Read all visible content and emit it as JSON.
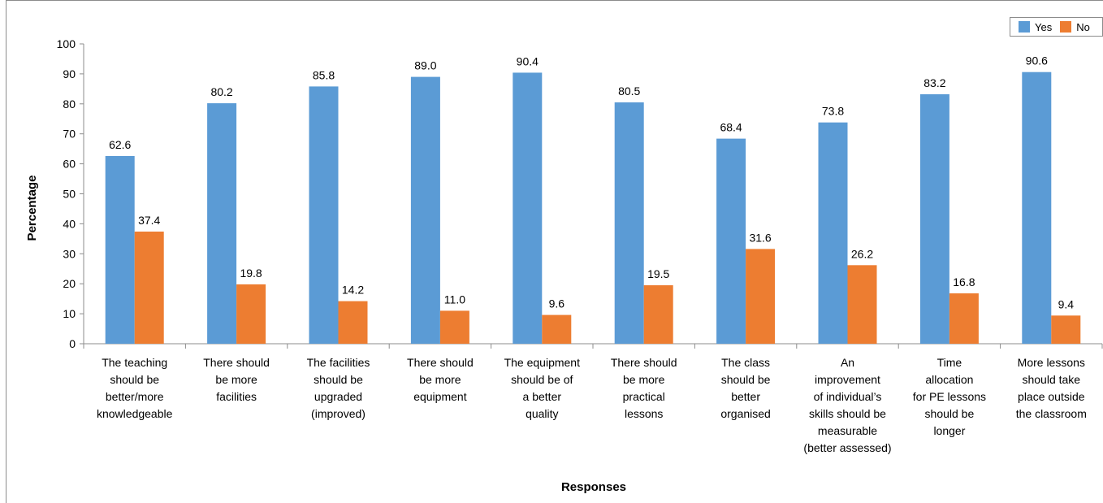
{
  "chart_data": {
    "type": "bar",
    "xlabel": "Responses",
    "ylabel": "Percentage",
    "ylim": [
      0,
      100
    ],
    "yticks": [
      "0",
      "10",
      "20",
      "30",
      "40",
      "50",
      "60",
      "70",
      "80",
      "90",
      "100"
    ],
    "grid": false,
    "legend_position": "top-right",
    "categories": [
      [
        "The teaching",
        "should be",
        "better/more",
        "knowledgeable"
      ],
      [
        "There should",
        "be more",
        "facilities"
      ],
      [
        "The facilities",
        "should be",
        "upgraded",
        "(improved)"
      ],
      [
        "There should",
        "be more",
        "equipment"
      ],
      [
        "The equipment",
        "should be of",
        "a better",
        "quality"
      ],
      [
        "There should",
        "be more",
        "practical",
        "lessons"
      ],
      [
        "The class",
        "should be",
        "better",
        "organised"
      ],
      [
        "An",
        "improvement",
        "of  individual’s",
        "skills should be",
        "measurable",
        "(better assessed)"
      ],
      [
        "Time",
        "allocation",
        "for PE lessons",
        "should be",
        "longer"
      ],
      [
        "More lessons",
        "should take",
        "place outside",
        "the classroom"
      ]
    ],
    "series": [
      {
        "name": "Yes",
        "color": "#5b9bd5",
        "values": [
          62.6,
          80.2,
          85.8,
          89.0,
          90.4,
          80.5,
          68.4,
          73.8,
          83.2,
          90.6
        ],
        "labels": [
          "62.6",
          "80.2",
          "85.8",
          "89.0",
          "90.4",
          "80.5",
          "68.4",
          "73.8",
          "83.2",
          "90.6"
        ]
      },
      {
        "name": "No",
        "color": "#ed7d31",
        "values": [
          37.4,
          19.8,
          14.2,
          11.0,
          9.6,
          19.5,
          31.6,
          26.2,
          16.8,
          9.4
        ],
        "labels": [
          "37.4",
          "19.8",
          "14.2",
          "11.0",
          "9.6",
          "19.5",
          "31.6",
          "26.2",
          "16.8",
          "9.4"
        ]
      }
    ]
  }
}
